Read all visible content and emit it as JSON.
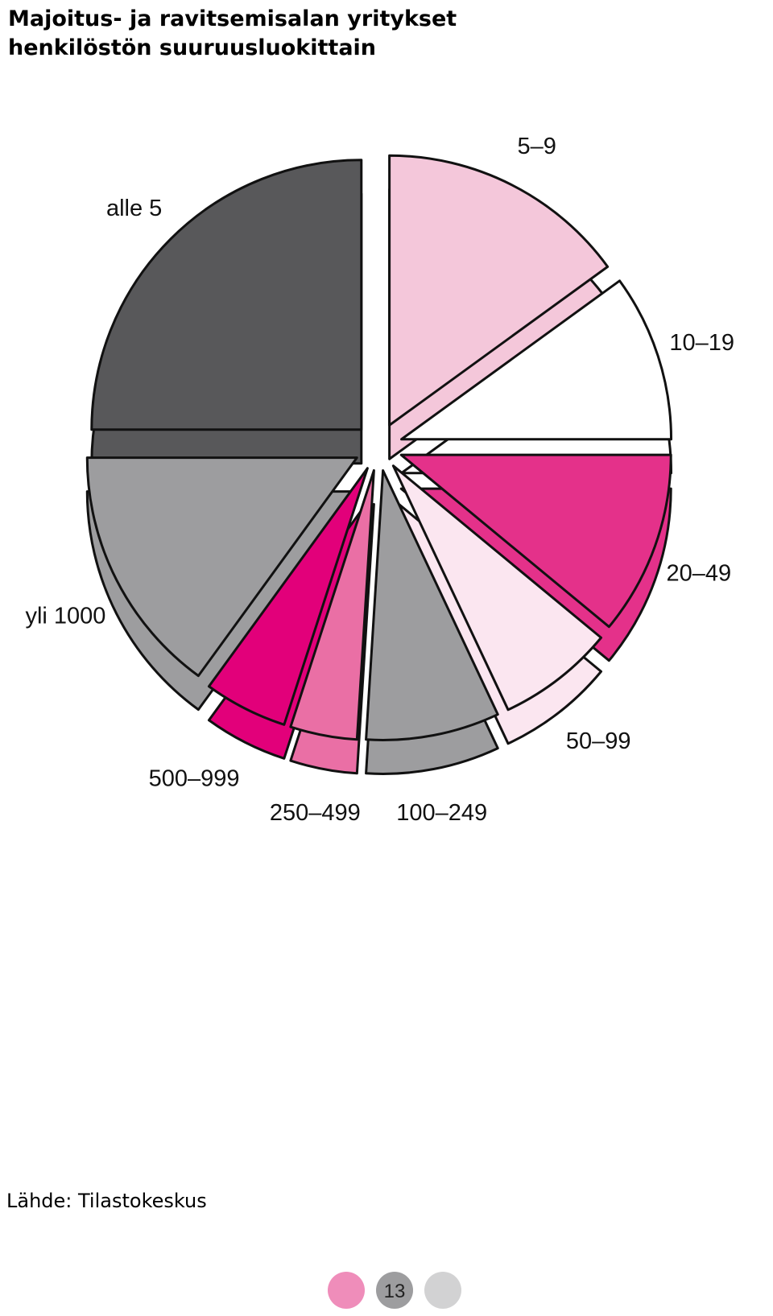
{
  "chart_data": {
    "type": "pie",
    "title": [
      "Majoitus- ja ravitsemisalan yritykset",
      "henkilöstön suuruusluokittain"
    ],
    "categories": [
      "5–9",
      "10–19",
      "20–49",
      "50–99",
      "100–249",
      "250–499",
      "500–999",
      "yli 1000",
      "alle 5"
    ],
    "values": [
      15,
      10,
      11,
      7,
      8,
      4,
      5,
      15,
      25
    ],
    "colors": [
      "#f4c7da",
      "#ffffff",
      "#e4318a",
      "#fbe6f0",
      "#9d9d9f",
      "#ea6fa5",
      "#e2007a",
      "#9d9d9f",
      "#58585a"
    ],
    "source": "Lähde: Tilastokeskus"
  },
  "page_number": "13"
}
